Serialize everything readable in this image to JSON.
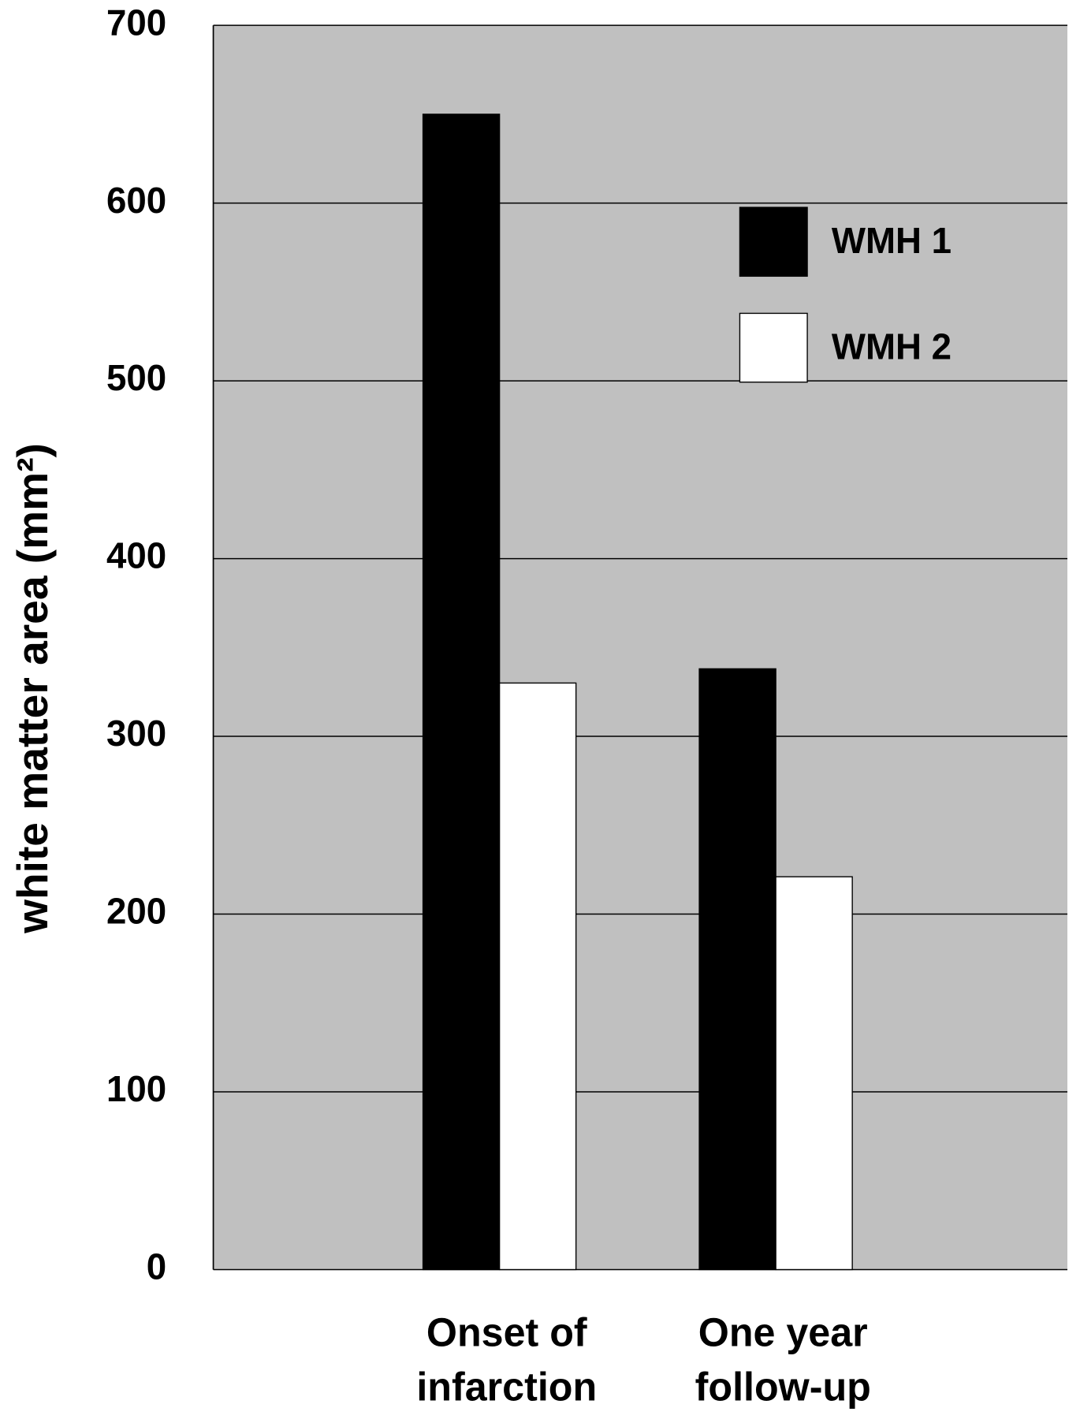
{
  "chart_data": {
    "type": "bar",
    "ylabel": "white matter area (mm²)",
    "categories": [
      [
        "Onset of",
        "infarction"
      ],
      [
        "One year",
        "follow-up"
      ]
    ],
    "series": [
      {
        "name": "WMH 1",
        "color": "#000000",
        "values": [
          650,
          338
        ]
      },
      {
        "name": "WMH 2",
        "color": "#ffffff",
        "values": [
          330,
          221
        ]
      }
    ],
    "ylim": [
      0,
      700
    ],
    "yticks": [
      0,
      100,
      200,
      300,
      400,
      500,
      600,
      700
    ],
    "grid": true,
    "background": "#c0c0c0",
    "legend": "upper right"
  }
}
